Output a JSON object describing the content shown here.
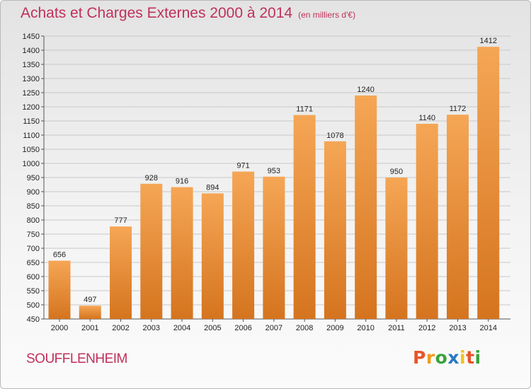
{
  "header": {
    "title": "Achats et Charges Externes 2000 à 2014",
    "subtitle": "(en milliers d'€)"
  },
  "footer": {
    "commune": "SOUFFLENHEIM",
    "logo": [
      "P",
      "r",
      "o",
      "x",
      "i",
      "t",
      "i"
    ]
  },
  "colors": {
    "title": "#c0305a",
    "bar_top": "#f5a655",
    "bar_bottom": "#d5741f",
    "logo": [
      "#e8542a",
      "#f29a1e",
      "#3aa33c",
      "#2b78c2",
      "#f2c21a",
      "#e8542a",
      "#3aa33c"
    ]
  },
  "chart_data": {
    "type": "bar",
    "title": "Achats et Charges Externes 2000 à 2014",
    "subtitle": "(en milliers d'€)",
    "categories": [
      "2000",
      "2001",
      "2002",
      "2003",
      "2004",
      "2005",
      "2006",
      "2007",
      "2008",
      "2009",
      "2010",
      "2011",
      "2012",
      "2013",
      "2014"
    ],
    "values": [
      656,
      497,
      777,
      928,
      916,
      894,
      971,
      953,
      1171,
      1078,
      1240,
      950,
      1140,
      1172,
      1412
    ],
    "ylim": [
      450,
      1450
    ],
    "ytick_step": 50,
    "grid": true,
    "legend": "none"
  }
}
